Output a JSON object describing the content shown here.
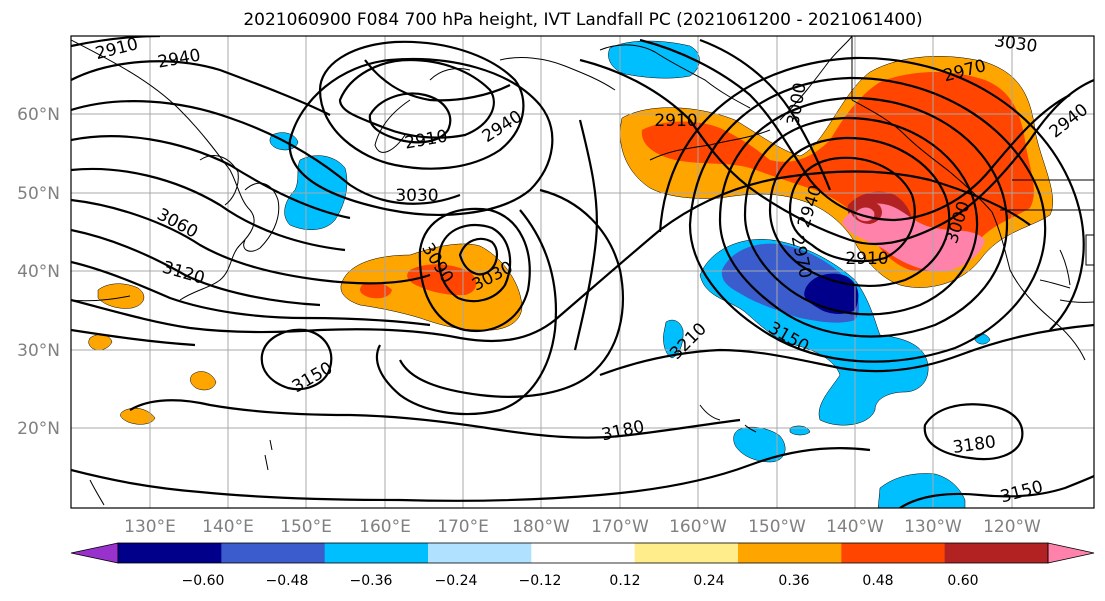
{
  "title": "2021060900 F084 700 hPa height, IVT Landfall PC (2021061200 - 2021061400)",
  "lat_labels": [
    "60°N",
    "50°N",
    "40°N",
    "30°N",
    "20°N"
  ],
  "lon_labels": [
    "130°E",
    "140°E",
    "150°E",
    "160°E",
    "170°E",
    "180°W",
    "170°W",
    "160°W",
    "150°W",
    "140°W",
    "130°W",
    "120°W"
  ],
  "colorbar": {
    "ticks": [
      "−0.60",
      "−0.48",
      "−0.36",
      "−0.24",
      "−0.12",
      "0.12",
      "0.24",
      "0.36",
      "0.48",
      "0.60"
    ],
    "colors": [
      "#9932cc",
      "#00008b",
      "#3a5ccc",
      "#00bfff",
      "#b0e2ff",
      "#ffffff",
      "#ffec8b",
      "#ffa500",
      "#ff4500",
      "#b22222",
      "#ff82ab"
    ]
  },
  "contour_labels": {
    "c1": "2910",
    "c2": "2940",
    "c3": "2910",
    "c4": "2940",
    "c5": "3030",
    "c6": "3060",
    "c7": "3120",
    "c8": "3090",
    "c9": "3030",
    "c10": "2910",
    "c11": "2940",
    "c12": "3000",
    "c13": "2940",
    "c14": "2970",
    "c15": "3000",
    "c16": "2970",
    "c17": "2910",
    "c18": "3030",
    "c19": "3150",
    "c20": "3210",
    "c21": "3150",
    "c22": "3180",
    "c23": "3180",
    "c24": "3150"
  }
}
